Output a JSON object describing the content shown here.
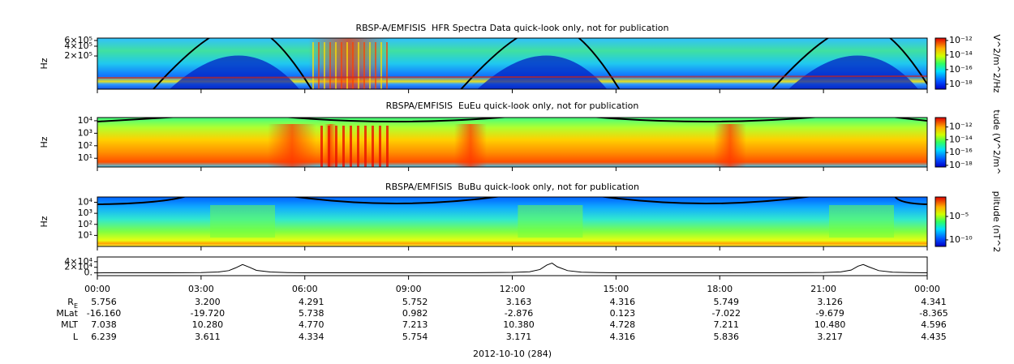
{
  "chart_data": [
    {
      "type": "spectrogram",
      "title": "RBSP-A/EMFISIS  HFR Spectra Data quick-look only, not for publication",
      "ylabel": "Hz",
      "ylog": true,
      "ylim": [
        19000,
        710000
      ],
      "yticks": [
        {
          "value": 200000,
          "label": "2×10⁵"
        },
        {
          "value": 400000,
          "label": "4×10⁵"
        },
        {
          "value": 600000,
          "label": "6×10⁵"
        }
      ],
      "colorbar": {
        "label": "V^2/m^2/Hz",
        "log": true,
        "lim": [
          2.1e-19,
          2.1e-12
        ],
        "ticks": [
          {
            "value": 1e-18,
            "label": "10⁻¹⁸"
          },
          {
            "value": 1e-16,
            "label": "10⁻¹⁶"
          },
          {
            "value": 1e-14,
            "label": "10⁻¹⁴"
          },
          {
            "value": 1e-12,
            "label": "10⁻¹²"
          }
        ]
      }
    },
    {
      "type": "spectrogram",
      "title": "RBSPA/EMFISIS  EuEu quick-look only, not for publication",
      "ylabel": "Hz",
      "ylog": true,
      "ylim": [
        2,
        18000
      ],
      "yticks": [
        {
          "value": 10,
          "label": "10¹"
        },
        {
          "value": 100,
          "label": "10²"
        },
        {
          "value": 1000,
          "label": "10³"
        },
        {
          "value": 10000,
          "label": "10⁴"
        }
      ],
      "colorbar": {
        "label": "tude (V^2/m^",
        "log": true,
        "lim": [
          5.5e-19,
          3e-11
        ],
        "ticks": [
          {
            "value": 1e-18,
            "label": "10⁻¹⁸"
          },
          {
            "value": 1e-16,
            "label": "10⁻¹⁶"
          },
          {
            "value": 1e-14,
            "label": "10⁻¹⁴"
          },
          {
            "value": 1e-12,
            "label": "10⁻¹²"
          }
        ]
      }
    },
    {
      "type": "spectrogram",
      "title": "RBSPA/EMFISIS  BuBu quick-look only, not for publication",
      "ylabel": "Hz",
      "ylog": true,
      "ylim": [
        1,
        30000
      ],
      "yticks": [
        {
          "value": 10,
          "label": "10¹"
        },
        {
          "value": 100,
          "label": "10²"
        },
        {
          "value": 1000,
          "label": "10³"
        },
        {
          "value": 10000,
          "label": "10⁴"
        }
      ],
      "colorbar": {
        "label": "plitude (nT^2",
        "log": true,
        "lim": [
          4e-12,
          0.14
        ],
        "ticks": [
          {
            "value": 1e-10,
            "label": "10⁻¹⁰"
          },
          {
            "value": 1e-05,
            "label": "10⁻⁵"
          }
        ]
      }
    },
    {
      "type": "line",
      "color": "#000000",
      "xlabel": "2012-10-10 (284)",
      "ylim": [
        -10000,
        57000
      ],
      "yticks": [
        {
          "value": 0,
          "label": "0."
        },
        {
          "value": 20000,
          "label": "2×10⁴"
        },
        {
          "value": 40000,
          "label": "4×10⁴"
        }
      ],
      "xlim": [
        0,
        24
      ],
      "xticks": [
        {
          "value": 0,
          "label": "00:00"
        },
        {
          "value": 3,
          "label": "03:00"
        },
        {
          "value": 6,
          "label": "06:00"
        },
        {
          "value": 9,
          "label": "09:00"
        },
        {
          "value": 12,
          "label": "12:00"
        },
        {
          "value": 15,
          "label": "15:00"
        },
        {
          "value": 18,
          "label": "18:00"
        },
        {
          "value": 21,
          "label": "21:00"
        },
        {
          "value": 24,
          "label": "00:00"
        }
      ],
      "x": [
        0,
        2,
        3,
        3.5,
        3.8,
        4.0,
        4.2,
        4.4,
        4.6,
        5.0,
        5.5,
        6,
        9,
        11,
        12,
        12.5,
        12.8,
        13.0,
        13.15,
        13.3,
        13.6,
        14,
        14.5,
        15,
        18,
        20,
        21,
        21.5,
        21.8,
        22.0,
        22.15,
        22.3,
        22.6,
        23,
        23.5,
        24
      ],
      "values": [
        0,
        200,
        1000,
        3000,
        8000,
        18000,
        30000,
        20000,
        9000,
        3000,
        1000,
        200,
        200,
        500,
        1500,
        4000,
        12000,
        28000,
        35000,
        22000,
        8000,
        2500,
        800,
        200,
        200,
        400,
        1200,
        3500,
        10000,
        24000,
        30000,
        22000,
        8000,
        2500,
        800,
        300
      ]
    }
  ],
  "ephemeris": {
    "rows": [
      {
        "label": {
          "main": "R",
          "sub": "E"
        },
        "values": [
          "5.756",
          "3.200",
          "4.291",
          "5.752",
          "3.163",
          "4.316",
          "5.749",
          "3.126",
          "4.341"
        ]
      },
      {
        "label": "MLat",
        "values": [
          "-16.160",
          "-19.720",
          "5.738",
          "0.982",
          "-2.876",
          "0.123",
          "-7.022",
          "-9.679",
          "-8.365"
        ]
      },
      {
        "label": "MLT",
        "values": [
          "7.038",
          "10.280",
          "4.770",
          "7.213",
          "10.380",
          "4.728",
          "7.211",
          "10.480",
          "4.596"
        ]
      },
      {
        "label": "L",
        "values": [
          "6.239",
          "3.611",
          "4.334",
          "5.754",
          "3.171",
          "4.316",
          "5.836",
          "3.217",
          "4.435"
        ]
      }
    ]
  }
}
